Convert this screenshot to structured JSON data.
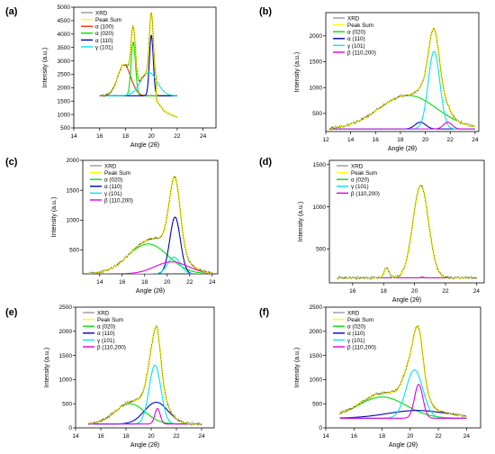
{
  "colors": {
    "xrd": "#9a9a9a",
    "peak_sum": "#ffff00",
    "alpha_100": "#ff2a00",
    "alpha_020": "#00e000",
    "alpha_110": "#0000bb",
    "gamma_101": "#00e5ee",
    "beta": "#e000e0",
    "background": "#0000ff"
  },
  "chart_data": [
    {
      "id": "a",
      "panel_label": "(a)",
      "type": "line",
      "xlabel": "Angle (2θ)",
      "ylabel": "Intensity (a.u.)",
      "xlim": [
        14,
        25
      ],
      "ylim": [
        500,
        5000
      ],
      "xticks": [
        14,
        16,
        18,
        20,
        22,
        24
      ],
      "yticks": [
        500,
        1000,
        1500,
        2000,
        2500,
        3000,
        3500,
        4000,
        4500,
        5000
      ],
      "baseline": 1700,
      "legend": [
        "XRD",
        "Peak Sum",
        "α (100)",
        "α (020)",
        "α (110)",
        "γ (101)"
      ],
      "data_range": [
        16,
        22
      ],
      "xrd_tail": [
        [
          20.4,
          1500
        ],
        [
          21.0,
          1150
        ],
        [
          21.5,
          1000
        ],
        [
          22.0,
          900
        ]
      ],
      "series": [
        {
          "name": "α (100)",
          "color_key": "alpha_100",
          "center": 17.9,
          "height": 1150,
          "fwhm": 1.2
        },
        {
          "name": "α (020)",
          "color_key": "alpha_020",
          "center": 18.6,
          "height": 2000,
          "fwhm": 0.4
        },
        {
          "name": "α (110)",
          "color_key": "alpha_110",
          "center": 20.0,
          "height": 2250,
          "fwhm": 0.35
        },
        {
          "name": "γ (101)",
          "color_key": "gamma_101",
          "center": 19.8,
          "height": 870,
          "fwhm": 1.5
        }
      ]
    },
    {
      "id": "b",
      "panel_label": "(b)",
      "type": "line",
      "xlabel": "Angle (2θ)",
      "ylabel": "Intensity (a.u.)",
      "xlim": [
        12,
        24.3
      ],
      "ylim": [
        150,
        2450
      ],
      "xticks": [
        12,
        14,
        16,
        18,
        20,
        22,
        24
      ],
      "yticks": [
        500,
        1000,
        1500,
        2000
      ],
      "baseline": 200,
      "legend": [
        "XRD",
        "Peak Sum",
        "α (020)",
        "α (110)",
        "γ (101)",
        "β (110,200)"
      ],
      "data_range": [
        12.3,
        24
      ],
      "series": [
        {
          "name": "α (020)",
          "color_key": "alpha_020",
          "center": 18.6,
          "height": 650,
          "fwhm": 5.5
        },
        {
          "name": "α (110)",
          "color_key": "alpha_110",
          "center": 19.6,
          "height": 130,
          "fwhm": 1.0
        },
        {
          "name": "γ (101)",
          "color_key": "gamma_101",
          "center": 20.7,
          "height": 1500,
          "fwhm": 1.1
        },
        {
          "name": "β (110,200)",
          "color_key": "beta",
          "center": 21.8,
          "height": 130,
          "fwhm": 0.8
        }
      ]
    },
    {
      "id": "c",
      "panel_label": "(c)",
      "type": "line",
      "xlabel": "Angle (2θ)",
      "ylabel": "Intensity (a.u.)",
      "xlim": [
        12.5,
        24.5
      ],
      "ylim": [
        100,
        2000
      ],
      "xticks": [
        14,
        16,
        18,
        20,
        22,
        24
      ],
      "yticks": [
        500,
        1000,
        1500,
        2000
      ],
      "baseline": 100,
      "legend": [
        "XRD",
        "Peak Sum",
        "α (020)",
        "α (110)",
        "γ (101)",
        "β (110,200)"
      ],
      "data_range": [
        13,
        24
      ],
      "series": [
        {
          "name": "α (020)",
          "color_key": "alpha_020",
          "center": 18.3,
          "height": 500,
          "fwhm": 4.2
        },
        {
          "name": "α (110)",
          "color_key": "alpha_110",
          "center": 20.7,
          "height": 950,
          "fwhm": 1.1
        },
        {
          "name": "γ (101)",
          "color_key": "gamma_101",
          "center": 20.6,
          "height": 280,
          "fwhm": 1.3
        },
        {
          "name": "β (110,200)",
          "color_key": "beta",
          "center": 20.4,
          "height": 200,
          "fwhm": 3.5
        }
      ]
    },
    {
      "id": "d",
      "panel_label": "(d)",
      "type": "line",
      "xlabel": "Angle (2θ)",
      "ylabel": "Intensity (a.u.)",
      "xlim": [
        14.5,
        24.5
      ],
      "ylim": [
        100,
        1550
      ],
      "xticks": [
        16,
        18,
        20,
        22,
        24
      ],
      "yticks": [
        500,
        1000,
        1500
      ],
      "baseline": 160,
      "legend": [
        "XRD",
        "Peak Sum",
        "α (020)",
        "γ (101)",
        "β (110,200)"
      ],
      "data_range": [
        15,
        24
      ],
      "series": [
        {
          "name": "α (020)",
          "color_key": "alpha_020",
          "center": 18.2,
          "height": 120,
          "fwhm": 0.35
        },
        {
          "name": "γ (101)",
          "color_key": "gamma_101",
          "center": 20.4,
          "height": 1090,
          "fwhm": 1.2
        },
        {
          "name": "β (110,200)",
          "color_key": "beta",
          "center": 20.5,
          "height": 10,
          "fwhm": 0.2
        }
      ]
    },
    {
      "id": "e",
      "panel_label": "(e)",
      "type": "line",
      "xlabel": "Angle (2θ)",
      "ylabel": "Intensity (a.u.)",
      "xlim": [
        14,
        25
      ],
      "ylim": [
        0,
        2500
      ],
      "xticks": [
        14,
        16,
        18,
        20,
        22,
        24
      ],
      "yticks": [
        0,
        500,
        1000,
        1500,
        2000,
        2500
      ],
      "baseline": 80,
      "legend": [
        "XRD",
        "Peak Sum",
        "α (020)",
        "α (110)",
        "γ (101)",
        "β (110,200)"
      ],
      "data_range": [
        15,
        24
      ],
      "series": [
        {
          "name": "α (020)",
          "color_key": "alpha_020",
          "center": 18.3,
          "height": 420,
          "fwhm": 2.8
        },
        {
          "name": "α (110)",
          "color_key": "alpha_110",
          "center": 20.4,
          "height": 450,
          "fwhm": 2.2
        },
        {
          "name": "γ (101)",
          "color_key": "gamma_101",
          "center": 20.3,
          "height": 1220,
          "fwhm": 1.1
        },
        {
          "name": "β (110,200)",
          "color_key": "beta",
          "center": 20.5,
          "height": 320,
          "fwhm": 0.5
        }
      ]
    },
    {
      "id": "f",
      "panel_label": "(f)",
      "type": "line",
      "xlabel": "Angle (2θ)",
      "ylabel": "Intensity (a.u.)",
      "xlim": [
        14,
        25
      ],
      "ylim": [
        0,
        2500
      ],
      "xticks": [
        14,
        16,
        18,
        20,
        22,
        24
      ],
      "yticks": [
        0,
        500,
        1000,
        1500,
        2000,
        2500
      ],
      "baseline": 200,
      "legend": [
        "XRD",
        "Peak Sum",
        "α (020)",
        "α (110)",
        "γ (101)",
        "β (110,200)"
      ],
      "data_range": [
        15,
        24
      ],
      "series": [
        {
          "name": "α (020)",
          "color_key": "alpha_020",
          "center": 18.0,
          "height": 440,
          "fwhm": 4.0
        },
        {
          "name": "α (110)",
          "color_key": "alpha_110",
          "center": 20.5,
          "height": 160,
          "fwhm": 5.0
        },
        {
          "name": "γ (101)",
          "color_key": "gamma_101",
          "center": 20.3,
          "height": 1000,
          "fwhm": 1.4
        },
        {
          "name": "β (110,200)",
          "color_key": "beta",
          "center": 20.6,
          "height": 700,
          "fwhm": 0.7
        }
      ]
    }
  ]
}
